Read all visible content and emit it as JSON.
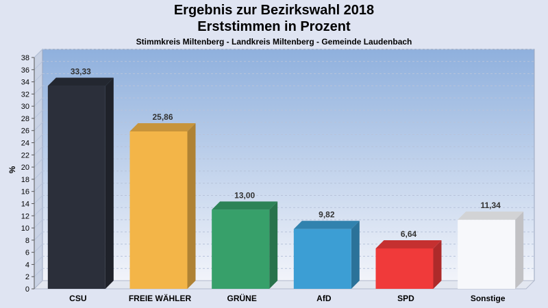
{
  "title": "Ergebnis zur Bezirkswahl 2018",
  "subtitle": "Erststimmen in Prozent",
  "caption": "Stimmkreis Miltenberg - Landkreis Miltenberg - Gemeinde Laudenbach",
  "chart_data": {
    "type": "bar",
    "categories": [
      "CSU",
      "FREIE WÄHLER",
      "GRÜNE",
      "AfD",
      "SPD",
      "Sonstige"
    ],
    "values": [
      33.33,
      25.86,
      13.0,
      9.82,
      6.64,
      11.34
    ],
    "value_labels": [
      "33,33",
      "25,86",
      "13,00",
      "9,82",
      "6,64",
      "11,34"
    ],
    "colors": [
      "#2b2f3a",
      "#f3b548",
      "#37a06a",
      "#3c9ed4",
      "#f03a3a",
      "#f7f8fb"
    ],
    "ylabel": "%",
    "ylim": [
      0,
      38
    ],
    "yticks": [
      0,
      2,
      4,
      6,
      8,
      10,
      12,
      14,
      16,
      18,
      20,
      22,
      24,
      26,
      28,
      30,
      32,
      34,
      36,
      38
    ],
    "grid": true
  }
}
